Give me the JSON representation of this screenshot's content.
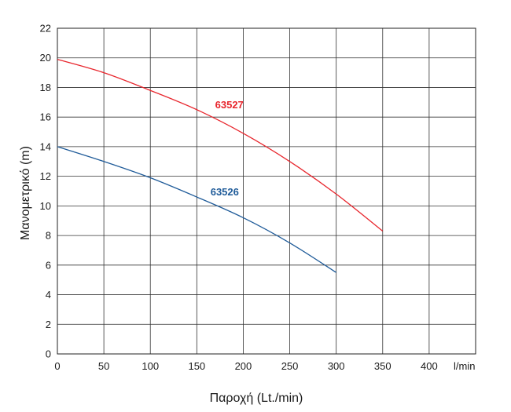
{
  "chart_data": {
    "type": "line",
    "xlabel": "Παροχή (Lt./min)",
    "ylabel": "Μανομετρικό  (m)",
    "x_unit_label": "l/min",
    "xlim": [
      0,
      450
    ],
    "ylim": [
      0,
      22
    ],
    "x_ticks": [
      0,
      50,
      100,
      150,
      200,
      250,
      300,
      350,
      400
    ],
    "y_ticks": [
      0,
      2,
      4,
      6,
      8,
      10,
      12,
      14,
      16,
      18,
      20,
      22
    ],
    "grid": true,
    "series": [
      {
        "name": "63527",
        "color": "#e8262d",
        "points": [
          [
            0,
            19.9
          ],
          [
            50,
            19.0
          ],
          [
            100,
            17.8
          ],
          [
            150,
            16.5
          ],
          [
            200,
            14.9
          ],
          [
            250,
            13.0
          ],
          [
            300,
            10.8
          ],
          [
            350,
            8.3
          ]
        ]
      },
      {
        "name": "63526",
        "color": "#1f5b99",
        "points": [
          [
            0,
            14.0
          ],
          [
            50,
            13.0
          ],
          [
            100,
            11.9
          ],
          [
            150,
            10.6
          ],
          [
            200,
            9.2
          ],
          [
            250,
            7.5
          ],
          [
            300,
            5.5
          ]
        ]
      }
    ]
  }
}
